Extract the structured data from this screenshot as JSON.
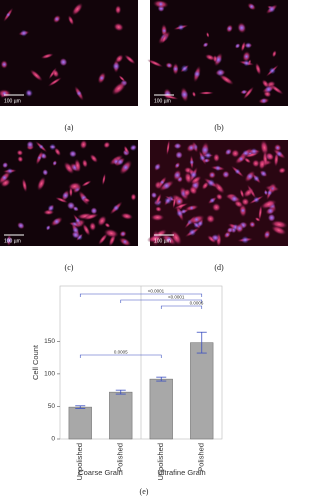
{
  "panels": [
    {
      "label": "(a)",
      "scale_bar": "100 µm"
    },
    {
      "label": "(b)",
      "scale_bar": "100 µm"
    },
    {
      "label": "(c)",
      "scale_bar": "100 µm"
    },
    {
      "label": "(d)",
      "scale_bar": "100 µm"
    }
  ],
  "chart_data": {
    "type": "bar",
    "label": "(e)",
    "y_label": "Cell Count",
    "categories": [
      "Unpolished",
      "Polished",
      "Unpolished",
      "Polished"
    ],
    "groups": [
      "Coarse Grain",
      "Ultrafine Grain"
    ],
    "values": [
      49,
      72,
      92,
      148
    ],
    "errors": [
      2,
      3,
      3,
      16
    ],
    "color": "#a8a8a8",
    "error_color": "#3a4fc0",
    "ylim": [
      0,
      235
    ],
    "yticks": [
      0,
      50,
      100,
      150
    ],
    "annotations": [
      {
        "text": "<0.0001",
        "from": 0,
        "to": 3
      },
      {
        "text": "<0.0001",
        "from": 1,
        "to": 3
      },
      {
        "text": "0.0006",
        "from": 2,
        "to": 3
      },
      {
        "text": "0.0005",
        "from": 0,
        "to": 2
      }
    ]
  }
}
